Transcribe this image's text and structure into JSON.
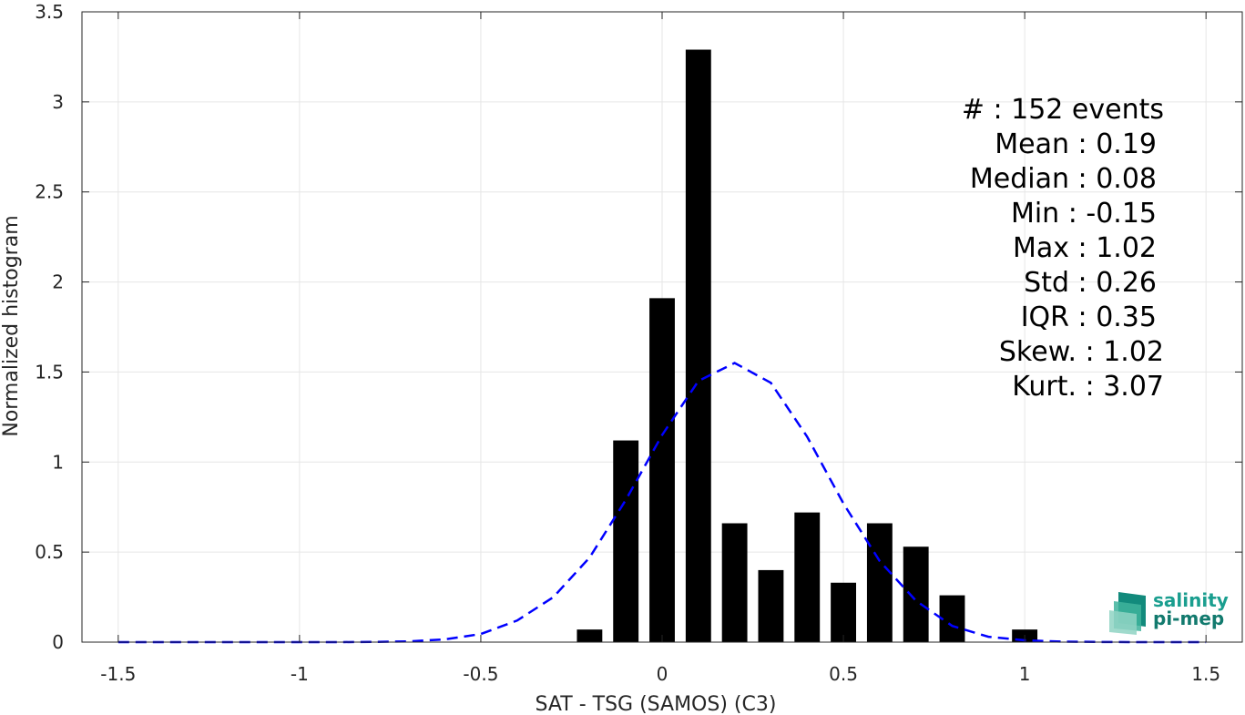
{
  "chart_data": {
    "type": "bar",
    "xlabel": "SAT - TSG (SAMOS) (C3)",
    "ylabel": "Normalized histogram",
    "xlim": [
      -1.6,
      1.6
    ],
    "ylim": [
      0,
      3.5
    ],
    "grid": true,
    "x_ticks": [
      -1.5,
      -1,
      -0.5,
      0,
      0.5,
      1,
      1.5
    ],
    "x_tick_labels": [
      "-1.5",
      "-1",
      "-0.5",
      "0",
      "0.5",
      "1",
      "1.5"
    ],
    "y_ticks": [
      0,
      0.5,
      1,
      1.5,
      2,
      2.5,
      3,
      3.5
    ],
    "y_tick_labels": [
      "0",
      "0.5",
      "1",
      "1.5",
      "2",
      "2.5",
      "3",
      "3.5"
    ],
    "bar_width": 0.07,
    "bars": [
      {
        "x": -0.2,
        "value": 0.07
      },
      {
        "x": -0.1,
        "value": 1.12
      },
      {
        "x": 0.0,
        "value": 1.91
      },
      {
        "x": 0.1,
        "value": 3.29
      },
      {
        "x": 0.2,
        "value": 0.66
      },
      {
        "x": 0.3,
        "value": 0.4
      },
      {
        "x": 0.4,
        "value": 0.72
      },
      {
        "x": 0.5,
        "value": 0.33
      },
      {
        "x": 0.6,
        "value": 0.66
      },
      {
        "x": 0.7,
        "value": 0.53
      },
      {
        "x": 0.8,
        "value": 0.26
      },
      {
        "x": 1.0,
        "value": 0.07
      }
    ],
    "fit_curve": {
      "style": "dashed",
      "color": "#0000ff",
      "x": [
        -1.5,
        -1.4,
        -1.3,
        -1.2,
        -1.1,
        -1.0,
        -0.9,
        -0.8,
        -0.7,
        -0.6,
        -0.5,
        -0.4,
        -0.3,
        -0.2,
        -0.1,
        0.0,
        0.1,
        0.2,
        0.3,
        0.4,
        0.5,
        0.6,
        0.7,
        0.8,
        0.9,
        1.0,
        1.1,
        1.2,
        1.3,
        1.4,
        1.5
      ],
      "y": [
        0,
        0,
        0,
        0,
        0,
        0,
        0,
        0.001,
        0.004,
        0.015,
        0.045,
        0.12,
        0.25,
        0.47,
        0.79,
        1.15,
        1.45,
        1.55,
        1.44,
        1.14,
        0.77,
        0.45,
        0.23,
        0.09,
        0.03,
        0.01,
        0.003,
        0.001,
        0,
        0,
        0
      ]
    },
    "stats_lines": [
      "#  : 152 events",
      "Mean : 0.19",
      "Median : 0.08",
      "Min : -0.15",
      "Max : 1.02",
      "Std : 0.26",
      "IQR : 0.35",
      "Skew. : 1.02",
      "Kurt. : 3.07"
    ],
    "colors": {
      "bars": "#000000",
      "grid": "#e6e6e6",
      "axis": "#262626",
      "curve": "#0000ff",
      "logo_primary": "#1a9e8f",
      "logo_secondary": "#66c2a5"
    }
  },
  "logo": {
    "line1": "salinity",
    "line2": "pi-mep"
  }
}
